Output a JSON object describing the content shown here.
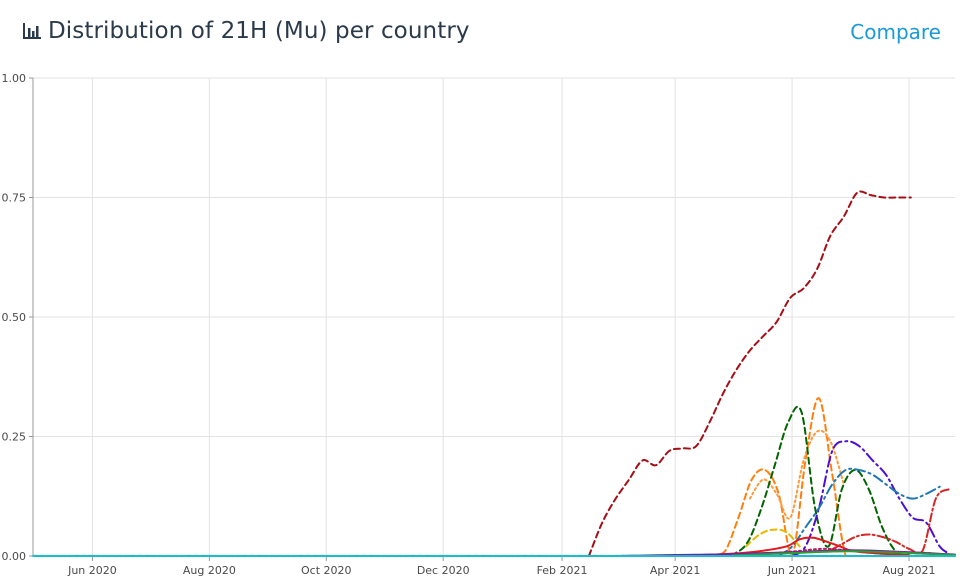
{
  "header": {
    "title": "Distribution of 21H (Mu) per country",
    "compare_label": "Compare",
    "icon": "bar-chart-icon"
  },
  "chart_data": {
    "type": "line",
    "title": "Distribution of 21H (Mu) per country",
    "xlabel": "",
    "ylabel": "",
    "ylim": [
      0,
      1
    ],
    "xlim": [
      "2020-05-01",
      "2021-08-25"
    ],
    "y_ticks": [
      "0.00",
      "0.25",
      "0.50",
      "0.75",
      "1.00"
    ],
    "y_tick_values": [
      0,
      0.25,
      0.5,
      0.75,
      1.0
    ],
    "x_ticks": [
      "Jun 2020",
      "Aug 2020",
      "Oct 2020",
      "Dec 2020",
      "Feb 2021",
      "Apr 2021",
      "Jun 2021",
      "Aug 2021"
    ],
    "x_tick_dates": [
      "2020-06-01",
      "2020-08-01",
      "2020-10-01",
      "2020-12-01",
      "2021-02-01",
      "2021-04-01",
      "2021-06-01",
      "2021-08-01"
    ],
    "grid": true,
    "legend": "none",
    "series": [
      {
        "color": "#a50f15",
        "dash": "6,4",
        "x": [
          "2021-02-15",
          "2021-02-22",
          "2021-03-01",
          "2021-03-08",
          "2021-03-15",
          "2021-03-22",
          "2021-03-29",
          "2021-04-05",
          "2021-04-12",
          "2021-04-19",
          "2021-04-26",
          "2021-05-03",
          "2021-05-10",
          "2021-05-17",
          "2021-05-24",
          "2021-05-31",
          "2021-06-07",
          "2021-06-14",
          "2021-06-21",
          "2021-06-28",
          "2021-07-05",
          "2021-07-12",
          "2021-07-19",
          "2021-07-26",
          "2021-08-02"
        ],
        "y": [
          0.0,
          0.07,
          0.12,
          0.16,
          0.2,
          0.19,
          0.22,
          0.225,
          0.23,
          0.28,
          0.34,
          0.39,
          0.43,
          0.46,
          0.49,
          0.54,
          0.56,
          0.6,
          0.67,
          0.71,
          0.76,
          0.755,
          0.75,
          0.75,
          0.75
        ]
      },
      {
        "color": "#ff7f0e",
        "dash": "6,4",
        "x": [
          "2021-04-20",
          "2021-04-27",
          "2021-05-04",
          "2021-05-11",
          "2021-05-18",
          "2021-05-25",
          "2021-06-01",
          "2021-06-08",
          "2021-06-15",
          "2021-06-22",
          "2021-06-29",
          "2021-07-06"
        ],
        "y": [
          0.0,
          0.01,
          0.08,
          0.16,
          0.18,
          0.13,
          0.0,
          0.2,
          0.33,
          0.17,
          0.0,
          0.0
        ]
      },
      {
        "color": "#ff9a3c",
        "dash": "2,3",
        "x": [
          "2021-05-10",
          "2021-05-17",
          "2021-05-24",
          "2021-05-31",
          "2021-06-07",
          "2021-06-14",
          "2021-06-21",
          "2021-06-28"
        ],
        "y": [
          0.12,
          0.16,
          0.13,
          0.08,
          0.2,
          0.26,
          0.24,
          0.15
        ]
      },
      {
        "color": "#006400",
        "dash": "6,4",
        "x": [
          "2021-04-25",
          "2021-05-02",
          "2021-05-09",
          "2021-05-16",
          "2021-05-23",
          "2021-05-30",
          "2021-06-06",
          "2021-06-13",
          "2021-06-20",
          "2021-06-27",
          "2021-07-04",
          "2021-07-11",
          "2021-07-18",
          "2021-07-25",
          "2021-08-01"
        ],
        "y": [
          0.0,
          0.005,
          0.03,
          0.1,
          0.19,
          0.28,
          0.3,
          0.1,
          0.02,
          0.14,
          0.18,
          0.14,
          0.06,
          0.01,
          0.0
        ]
      },
      {
        "color": "#4b0fd6",
        "dash": "10,4,2,4",
        "x": [
          "2021-06-01",
          "2021-06-08",
          "2021-06-15",
          "2021-06-22",
          "2021-06-29",
          "2021-07-06",
          "2021-07-13",
          "2021-07-20",
          "2021-07-27",
          "2021-08-03",
          "2021-08-10",
          "2021-08-17",
          "2021-08-22"
        ],
        "y": [
          0.0,
          0.02,
          0.1,
          0.22,
          0.24,
          0.23,
          0.2,
          0.17,
          0.12,
          0.08,
          0.07,
          0.02,
          0.005
        ]
      },
      {
        "color": "#1f77b4",
        "dash": "10,4,2,4",
        "x": [
          "2021-05-25",
          "2021-06-01",
          "2021-06-08",
          "2021-06-15",
          "2021-06-22",
          "2021-06-29",
          "2021-07-06",
          "2021-07-13",
          "2021-07-20",
          "2021-07-27",
          "2021-08-03",
          "2021-08-10",
          "2021-08-17"
        ],
        "y": [
          0.0,
          0.02,
          0.06,
          0.1,
          0.15,
          0.18,
          0.18,
          0.17,
          0.15,
          0.13,
          0.12,
          0.13,
          0.145
        ]
      },
      {
        "color": "#e6b800",
        "dash": "6,4",
        "x": [
          "2021-05-08",
          "2021-05-15",
          "2021-05-22",
          "2021-05-29",
          "2021-06-05"
        ],
        "y": [
          0.02,
          0.045,
          0.055,
          0.05,
          0.02
        ]
      },
      {
        "color": "#e31a1c",
        "dash": "",
        "x": [
          "2021-04-01",
          "2021-04-15",
          "2021-05-01",
          "2021-05-15",
          "2021-05-29",
          "2021-06-05",
          "2021-06-12",
          "2021-06-19",
          "2021-06-26",
          "2021-07-03",
          "2021-07-17",
          "2021-08-01"
        ],
        "y": [
          0.0,
          0.002,
          0.005,
          0.01,
          0.02,
          0.035,
          0.038,
          0.03,
          0.02,
          0.01,
          0.005,
          0.002
        ]
      },
      {
        "color": "#d62728",
        "dash": "2,3,8,3",
        "x": [
          "2021-06-20",
          "2021-06-27",
          "2021-07-04",
          "2021-07-11",
          "2021-07-18",
          "2021-07-25",
          "2021-08-01",
          "2021-08-08",
          "2021-08-15",
          "2021-08-22"
        ],
        "y": [
          0.01,
          0.025,
          0.04,
          0.045,
          0.04,
          0.03,
          0.015,
          0.01,
          0.12,
          0.14
        ]
      },
      {
        "color": "#c2185b",
        "dash": "2,3",
        "x": [
          "2021-05-20",
          "2021-06-03",
          "2021-06-17",
          "2021-07-01",
          "2021-07-15",
          "2021-07-29",
          "2021-08-12"
        ],
        "y": [
          0.005,
          0.01,
          0.015,
          0.012,
          0.01,
          0.008,
          0.006
        ]
      },
      {
        "color": "#7b1fa2",
        "dash": "",
        "x": [
          "2021-03-01",
          "2021-04-01",
          "2021-05-01",
          "2021-06-01",
          "2021-07-01",
          "2021-08-01",
          "2021-08-25"
        ],
        "y": [
          0.0,
          0.002,
          0.004,
          0.008,
          0.012,
          0.008,
          0.003
        ]
      },
      {
        "color": "#2ca02c",
        "dash": "",
        "x": [
          "2021-05-01",
          "2021-06-01",
          "2021-07-01",
          "2021-08-01",
          "2021-08-25"
        ],
        "y": [
          0.001,
          0.006,
          0.01,
          0.006,
          0.002
        ]
      },
      {
        "color": "#17becf",
        "dash": "",
        "x": [
          "2020-05-01",
          "2021-08-25"
        ],
        "y": [
          0.0,
          0.0
        ]
      }
    ]
  }
}
